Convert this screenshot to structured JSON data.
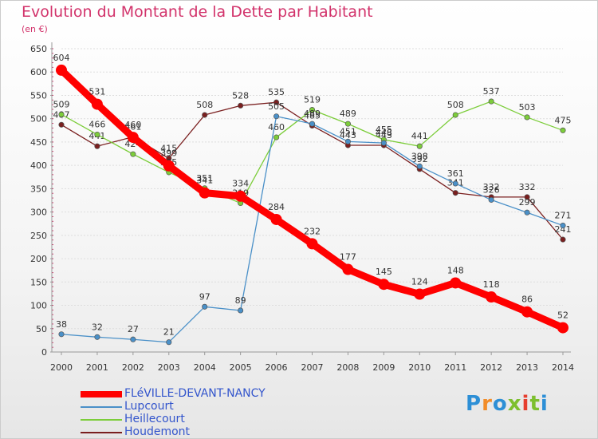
{
  "title": "Evolution du Montant de la Dette par Habitant",
  "subtitle": "(en €)",
  "logo": {
    "text": "Proxiti",
    "colors": [
      "#2d8fd6",
      "#f28c28",
      "#2d8fd6",
      "#7dbf2f",
      "#e63e2f",
      "#7dbf2f"
    ]
  },
  "chart_data": {
    "type": "line",
    "title": "Evolution du Montant de la Dette par Habitant",
    "subtitle": "(en €)",
    "xlabel": "",
    "ylabel": "",
    "x": [
      2000,
      2001,
      2002,
      2003,
      2004,
      2005,
      2006,
      2007,
      2008,
      2009,
      2010,
      2011,
      2012,
      2013,
      2014
    ],
    "ylim": [
      0,
      650
    ],
    "yticks": [
      0,
      50,
      100,
      150,
      200,
      250,
      300,
      350,
      400,
      450,
      500,
      550,
      600,
      650
    ],
    "grid": "horizontal",
    "legend": "bottom-left",
    "series": [
      {
        "name": "Houdemont",
        "color": "#7a1f1f",
        "values": [
          487,
          441,
          461,
          415,
          508,
          528,
          535,
          485,
          443,
          443,
          392,
          341,
          332,
          332,
          241
        ]
      },
      {
        "name": "Heillecourt",
        "color": "#7ccd3a",
        "values": [
          509,
          466,
          424,
          385,
          351,
          319,
          460,
          519,
          489,
          455,
          441,
          508,
          537,
          503,
          475
        ]
      },
      {
        "name": "Lupcourt",
        "color": "#4a90c8",
        "values": [
          38,
          32,
          27,
          21,
          97,
          89,
          505,
          489,
          451,
          448,
          398,
          361,
          326,
          299,
          271
        ]
      },
      {
        "name": "FLéVILLE-DEVANT-NANCY",
        "color": "#ff0000",
        "values": [
          604,
          531,
          460,
          399,
          341,
          334,
          284,
          232,
          177,
          145,
          124,
          148,
          118,
          86,
          52
        ]
      }
    ]
  }
}
